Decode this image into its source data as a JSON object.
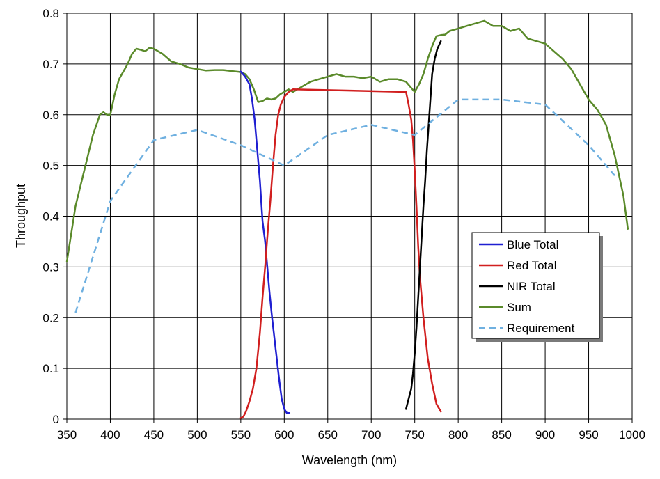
{
  "chart_data": {
    "type": "line",
    "xlabel": "Wavelength (nm)",
    "ylabel": "Throughput",
    "xlim": [
      350,
      1000
    ],
    "ylim": [
      0,
      0.8
    ],
    "xticks": [
      "350",
      "400",
      "450",
      "500",
      "550",
      "600",
      "650",
      "700",
      "750",
      "800",
      "850",
      "900",
      "950",
      "1000"
    ],
    "yticks": [
      "0",
      "0.1",
      "0.2",
      "0.3",
      "0.4",
      "0.5",
      "0.6",
      "0.7",
      "0.8"
    ],
    "grid": true,
    "legend_position": "right",
    "series": [
      {
        "name": "Blue Total",
        "color": "#1f1fd1",
        "dash": "solid",
        "x": [
          550,
          555,
          560,
          563,
          566,
          568,
          570,
          572,
          575,
          578,
          580,
          583,
          586,
          590,
          594,
          597,
          600,
          603,
          606
        ],
        "y": [
          0.685,
          0.675,
          0.66,
          0.63,
          0.59,
          0.55,
          0.51,
          0.47,
          0.39,
          0.35,
          0.31,
          0.25,
          0.2,
          0.14,
          0.08,
          0.04,
          0.02,
          0.012,
          0.012
        ]
      },
      {
        "name": "Red Total",
        "color": "#d11f1f",
        "dash": "solid",
        "x": [
          550,
          553,
          556,
          560,
          564,
          568,
          572,
          575,
          578,
          581,
          584,
          587,
          590,
          593,
          596,
          600,
          605,
          610,
          740,
          743,
          746,
          748,
          750,
          752,
          754,
          756,
          760,
          765,
          770,
          775,
          780
        ],
        "y": [
          0.002,
          0.005,
          0.015,
          0.035,
          0.06,
          0.1,
          0.17,
          0.24,
          0.3,
          0.37,
          0.43,
          0.5,
          0.56,
          0.6,
          0.62,
          0.635,
          0.645,
          0.65,
          0.645,
          0.62,
          0.59,
          0.55,
          0.49,
          0.42,
          0.34,
          0.28,
          0.2,
          0.12,
          0.07,
          0.03,
          0.015
        ]
      },
      {
        "name": "NIR Total",
        "color": "#000000",
        "dash": "solid",
        "x": [
          740,
          743,
          746,
          748,
          750,
          752,
          754,
          756,
          758,
          760,
          762,
          764,
          766,
          768,
          770,
          773,
          776,
          780
        ],
        "y": [
          0.02,
          0.04,
          0.06,
          0.09,
          0.13,
          0.18,
          0.24,
          0.3,
          0.36,
          0.42,
          0.47,
          0.53,
          0.58,
          0.63,
          0.68,
          0.71,
          0.73,
          0.745
        ]
      },
      {
        "name": "Sum",
        "color": "#5a8a2a",
        "dash": "solid",
        "x": [
          350,
          360,
          370,
          380,
          388,
          392,
          396,
          400,
          405,
          410,
          415,
          420,
          425,
          430,
          435,
          440,
          445,
          450,
          460,
          470,
          480,
          490,
          500,
          510,
          520,
          530,
          540,
          550,
          555,
          560,
          565,
          570,
          575,
          580,
          585,
          590,
          595,
          600,
          605,
          610,
          620,
          630,
          640,
          650,
          660,
          670,
          680,
          690,
          700,
          710,
          720,
          730,
          740,
          745,
          750,
          755,
          760,
          765,
          770,
          775,
          780,
          785,
          790,
          800,
          810,
          820,
          830,
          840,
          850,
          860,
          870,
          880,
          890,
          900,
          910,
          920,
          930,
          940,
          950,
          960,
          970,
          980,
          990,
          995
        ],
        "y": [
          0.31,
          0.42,
          0.49,
          0.56,
          0.6,
          0.605,
          0.6,
          0.6,
          0.64,
          0.67,
          0.685,
          0.7,
          0.72,
          0.73,
          0.728,
          0.725,
          0.732,
          0.73,
          0.72,
          0.705,
          0.7,
          0.693,
          0.69,
          0.687,
          0.688,
          0.688,
          0.686,
          0.684,
          0.68,
          0.67,
          0.65,
          0.625,
          0.627,
          0.632,
          0.63,
          0.632,
          0.64,
          0.645,
          0.65,
          0.645,
          0.655,
          0.665,
          0.67,
          0.675,
          0.68,
          0.675,
          0.675,
          0.672,
          0.675,
          0.665,
          0.67,
          0.67,
          0.665,
          0.655,
          0.645,
          0.66,
          0.68,
          0.71,
          0.735,
          0.755,
          0.757,
          0.758,
          0.765,
          0.77,
          0.775,
          0.78,
          0.785,
          0.775,
          0.775,
          0.765,
          0.77,
          0.75,
          0.745,
          0.74,
          0.725,
          0.71,
          0.69,
          0.66,
          0.63,
          0.61,
          0.58,
          0.52,
          0.44,
          0.375
        ]
      },
      {
        "name": "Requirement",
        "color": "#6fb0e0",
        "dash": "dashed",
        "x": [
          360,
          400,
          450,
          500,
          550,
          600,
          650,
          700,
          750,
          800,
          850,
          900,
          950,
          980
        ],
        "y": [
          0.21,
          0.43,
          0.55,
          0.57,
          0.54,
          0.5,
          0.56,
          0.58,
          0.56,
          0.63,
          0.63,
          0.62,
          0.54,
          0.48
        ]
      }
    ]
  }
}
